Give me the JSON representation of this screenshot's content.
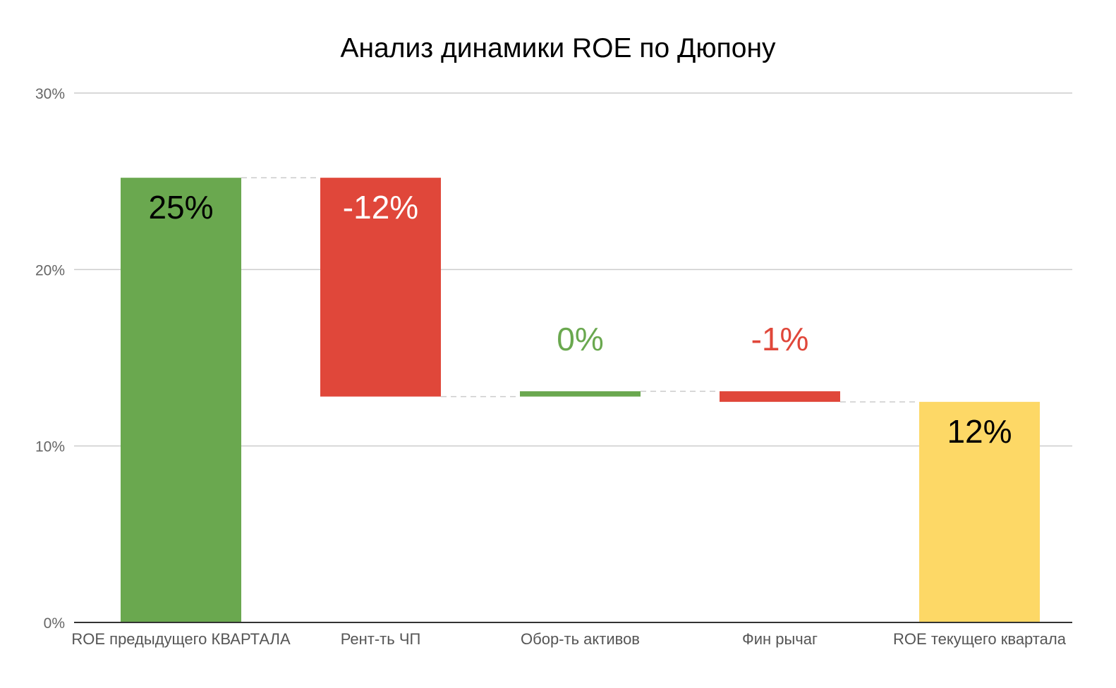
{
  "chart_data": {
    "type": "waterfall",
    "title": "Анализ динамики ROE по Дюпону",
    "xlabel": "",
    "ylabel": "",
    "ylim": [
      0,
      30
    ],
    "yticks": [
      0,
      10,
      20,
      30
    ],
    "ytick_labels": [
      "0%",
      "10%",
      "20%",
      "30%"
    ],
    "grid": true,
    "legend": "none",
    "categories": [
      "ROE предыдущего КВАРТАЛА",
      "Рент-ть ЧП",
      "Обор-ть активов",
      "Фин рычаг",
      "ROE текущего квартала"
    ],
    "bars": [
      {
        "kind": "total",
        "start": 0,
        "end": 25.2,
        "value": 25.2,
        "label": "25%"
      },
      {
        "kind": "decrease",
        "start": 25.2,
        "end": 12.8,
        "value": -12.4,
        "label": "-12%"
      },
      {
        "kind": "increase",
        "start": 12.8,
        "end": 13.1,
        "value": 0.3,
        "label": "0%"
      },
      {
        "kind": "decrease",
        "start": 13.1,
        "end": 12.5,
        "value": -0.6,
        "label": "-1%"
      },
      {
        "kind": "total",
        "start": 0,
        "end": 12.5,
        "value": 12.5,
        "label": "12%"
      }
    ],
    "colors": {
      "increase": "#6aa84f",
      "decrease": "#e0473a",
      "total_start": "#6aa84f",
      "total_end": "#fdd866",
      "label_on_green": "#000000",
      "label_on_red": "#ffffff",
      "label_on_yellow": "#000000",
      "label_increase_outside": "#6aa84f",
      "label_decrease_outside": "#e0473a",
      "grid": "#cccccc",
      "axis": "#333333",
      "connector": "#cccccc"
    }
  }
}
